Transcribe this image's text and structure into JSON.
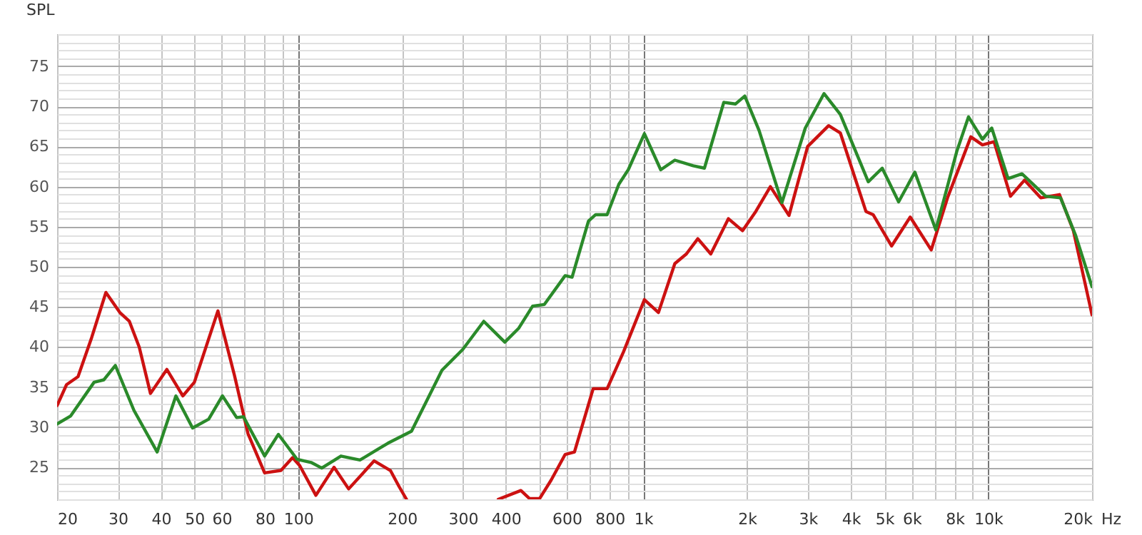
{
  "chart_data": {
    "type": "line",
    "ylabel": "SPL",
    "xlabel": "Hz",
    "log": "x",
    "grid": true,
    "line_style": "solid",
    "marker": "none",
    "xlim": [
      20,
      20000
    ],
    "ylim": [
      21,
      79
    ],
    "xticks": [
      20,
      30,
      40,
      50,
      60,
      {
        "value": 70,
        "label": null
      },
      80,
      {
        "value": 90,
        "label": null
      },
      100,
      200,
      300,
      400,
      {
        "value": 500,
        "label": null
      },
      600,
      {
        "value": 700,
        "label": null
      },
      800,
      {
        "value": 900,
        "label": null
      },
      {
        "value": 1000,
        "label": "1k"
      },
      {
        "value": 2000,
        "label": "2k"
      },
      {
        "value": 3000,
        "label": "3k"
      },
      {
        "value": 4000,
        "label": "4k"
      },
      {
        "value": 5000,
        "label": "5k"
      },
      {
        "value": 6000,
        "label": "6k"
      },
      {
        "value": 7000,
        "label": null
      },
      {
        "value": 8000,
        "label": "8k"
      },
      {
        "value": 9000,
        "label": null
      },
      {
        "value": 10000,
        "label": "10k"
      },
      {
        "value": 20000,
        "label": "20k"
      }
    ],
    "yticks": [
      {
        "value": 21,
        "label": null
      },
      {
        "value": 22,
        "label": null
      },
      {
        "value": 23,
        "label": null
      },
      {
        "value": 24,
        "label": null
      },
      25,
      {
        "value": 26,
        "label": null
      },
      {
        "value": 27,
        "label": null
      },
      {
        "value": 28,
        "label": null
      },
      {
        "value": 29,
        "label": null
      },
      30,
      {
        "value": 31,
        "label": null
      },
      {
        "value": 32,
        "label": null
      },
      {
        "value": 33,
        "label": null
      },
      {
        "value": 34,
        "label": null
      },
      35,
      {
        "value": 36,
        "label": null
      },
      {
        "value": 37,
        "label": null
      },
      {
        "value": 38,
        "label": null
      },
      {
        "value": 39,
        "label": null
      },
      40,
      {
        "value": 41,
        "label": null
      },
      {
        "value": 42,
        "label": null
      },
      {
        "value": 43,
        "label": null
      },
      {
        "value": 44,
        "label": null
      },
      45,
      {
        "value": 46,
        "label": null
      },
      {
        "value": 47,
        "label": null
      },
      {
        "value": 48,
        "label": null
      },
      {
        "value": 49,
        "label": null
      },
      50,
      {
        "value": 51,
        "label": null
      },
      {
        "value": 52,
        "label": null
      },
      {
        "value": 53,
        "label": null
      },
      {
        "value": 54,
        "label": null
      },
      55,
      {
        "value": 56,
        "label": null
      },
      {
        "value": 57,
        "label": null
      },
      {
        "value": 58,
        "label": null
      },
      {
        "value": 59,
        "label": null
      },
      60,
      {
        "value": 61,
        "label": null
      },
      {
        "value": 62,
        "label": null
      },
      {
        "value": 63,
        "label": null
      },
      {
        "value": 64,
        "label": null
      },
      65,
      {
        "value": 66,
        "label": null
      },
      {
        "value": 67,
        "label": null
      },
      {
        "value": 68,
        "label": null
      },
      {
        "value": 69,
        "label": null
      },
      70,
      {
        "value": 71,
        "label": null
      },
      {
        "value": 72,
        "label": null
      },
      {
        "value": 73,
        "label": null
      },
      {
        "value": 74,
        "label": null
      },
      75,
      {
        "value": 76,
        "label": null
      },
      {
        "value": 77,
        "label": null
      },
      {
        "value": 78,
        "label": null
      },
      {
        "value": 79,
        "label": null
      }
    ],
    "series": [
      {
        "color": "#cc1111",
        "x": [
          20,
          21.3,
          23,
          25.2,
          27.7,
          30.4,
          32.4,
          34.6,
          37.3,
          41.6,
          46.3,
          50,
          58.5,
          65.3,
          71.5,
          79.9,
          89.1,
          96.3,
          101,
          112.5,
          127,
          140,
          166,
          185,
          196,
          206,
          300,
          380,
          442,
          468,
          501,
          541,
          594,
          632,
          716,
          786,
          877,
          1008,
          1107,
          1235,
          1334,
          1440,
          1570,
          1766,
          1940,
          2120,
          2337,
          2646,
          2997,
          3447,
          3727,
          4422,
          4640,
          5249,
          5943,
          6837,
          7623,
          8906,
          9624,
          10400,
          11605,
          12740,
          14200,
          16090,
          17660,
          20000
        ],
        "values": [
          32.7,
          35.3,
          36.3,
          41.2,
          46.8,
          44.3,
          43.2,
          40,
          34.2,
          37.2,
          33.9,
          35.6,
          44.5,
          36.5,
          29.2,
          24.3,
          24.6,
          26.2,
          25.2,
          21.5,
          25,
          22.3,
          25.8,
          24.6,
          22.6,
          21,
          null,
          21,
          22.1,
          21.1,
          21.1,
          23.4,
          26.6,
          26.9,
          34.8,
          34.8,
          39.4,
          45.9,
          44.3,
          50.4,
          51.6,
          53.5,
          51.6,
          56,
          54.5,
          56.9,
          60,
          56.4,
          65,
          67.6,
          66.7,
          56.9,
          56.5,
          52.6,
          56.2,
          52.1,
          58.6,
          66.2,
          65.2,
          65.6,
          58.8,
          60.8,
          58.6,
          59,
          54.5,
          44
        ]
      },
      {
        "color": "#2a8a2a",
        "x": [
          20,
          21.9,
          25.6,
          27.3,
          29.5,
          33.4,
          39,
          44.2,
          49.4,
          55,
          60.3,
          66.3,
          69.4,
          79.9,
          87.6,
          99.2,
          109,
          117,
          133,
          151,
          171,
          182,
          213,
          261,
          300,
          345,
          397,
          435,
          478,
          517,
          594,
          622,
          694,
          728,
          786,
          850,
          905,
          1008,
          1124,
          1235,
          1396,
          1505,
          1712,
          1850,
          1970,
          2167,
          2524,
          2950,
          3342,
          3727,
          4492,
          4930,
          5500,
          6130,
          7050,
          8110,
          8770,
          9624,
          10240,
          11420,
          12530,
          14680,
          16210,
          17930,
          20000
        ],
        "values": [
          30.4,
          31.4,
          35.6,
          35.9,
          37.7,
          32.1,
          26.9,
          33.9,
          29.9,
          31,
          33.9,
          31.2,
          31.3,
          26.4,
          29.1,
          26,
          25.6,
          24.9,
          26.4,
          25.9,
          27.3,
          28,
          29.5,
          37.1,
          39.7,
          43.2,
          40.6,
          42.3,
          45.1,
          45.3,
          48.9,
          48.7,
          55.7,
          56.5,
          56.5,
          60.3,
          62.1,
          66.6,
          62.1,
          63.3,
          62.6,
          62.3,
          70.5,
          70.3,
          71.3,
          67,
          58,
          67.3,
          71.6,
          69,
          60.6,
          62.3,
          58.1,
          61.8,
          54.6,
          64.4,
          68.7,
          65.9,
          67.3,
          61,
          61.6,
          58.8,
          58.6,
          53.9,
          47.5
        ]
      }
    ]
  }
}
